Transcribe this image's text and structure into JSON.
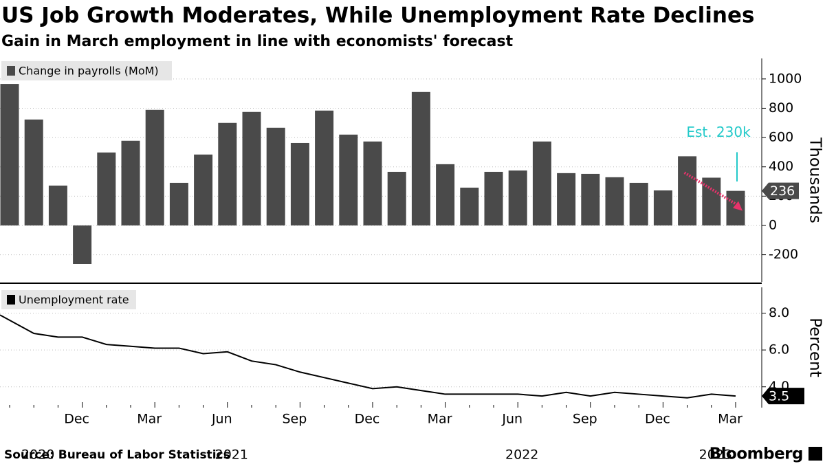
{
  "title": "US Job Growth Moderates, While Unemployment Rate Declines",
  "subtitle": "Gain in March employment in line with economists' forecast",
  "source": "Source: Bureau of Labor Statistics",
  "brand": "Bloomberg",
  "chart_data": [
    {
      "type": "bar",
      "axis_label": "Thousands",
      "estimate_label": "Est. 230k",
      "series": [
        {
          "name": "Change in payrolls (MoM)",
          "color": "#4a4a4a",
          "values": [
            966,
            723,
            272,
            -263,
            498,
            578,
            789,
            291,
            484,
            700,
            775,
            667,
            563,
            784,
            620,
            573,
            366,
            911,
            418,
            258,
            366,
            375,
            573,
            357,
            352,
            329,
            291,
            239,
            472,
            326,
            236
          ]
        }
      ],
      "ylim": [
        -385,
        1140
      ],
      "yticks": [
        -200,
        0,
        200,
        400,
        600,
        800,
        1000
      ],
      "grid": true
    },
    {
      "type": "line",
      "axis_label": "Percent",
      "categories": [
        null,
        null,
        null,
        "Dec",
        null,
        null,
        "Mar",
        null,
        null,
        "Jun",
        null,
        null,
        "Sep",
        null,
        null,
        "Dec",
        null,
        null,
        "Mar",
        null,
        null,
        "Jun",
        null,
        null,
        "Sep",
        null,
        null,
        "Dec",
        null,
        null,
        "Mar"
      ],
      "years": [
        {
          "label": "2020",
          "index": 1
        },
        {
          "label": "2021",
          "index": 9
        },
        {
          "label": "2022",
          "index": 21
        },
        {
          "label": "2023",
          "index": 29
        }
      ],
      "series": [
        {
          "name": "Unemployment rate",
          "color": "#000000",
          "values": [
            7.9,
            6.9,
            6.7,
            6.7,
            6.3,
            6.2,
            6.1,
            6.1,
            5.8,
            5.9,
            5.4,
            5.2,
            4.8,
            4.5,
            4.2,
            3.9,
            4.0,
            3.8,
            3.6,
            3.6,
            3.6,
            3.6,
            3.5,
            3.7,
            3.5,
            3.7,
            3.6,
            3.5,
            3.4,
            3.6,
            3.5
          ]
        }
      ],
      "ylim": [
        2.87,
        9.4
      ],
      "yticks": [
        {
          "value": 4,
          "label": "4.0"
        },
        {
          "value": 6,
          "label": "6.0"
        },
        {
          "value": 8,
          "label": "8.0"
        }
      ],
      "grid": true
    }
  ]
}
